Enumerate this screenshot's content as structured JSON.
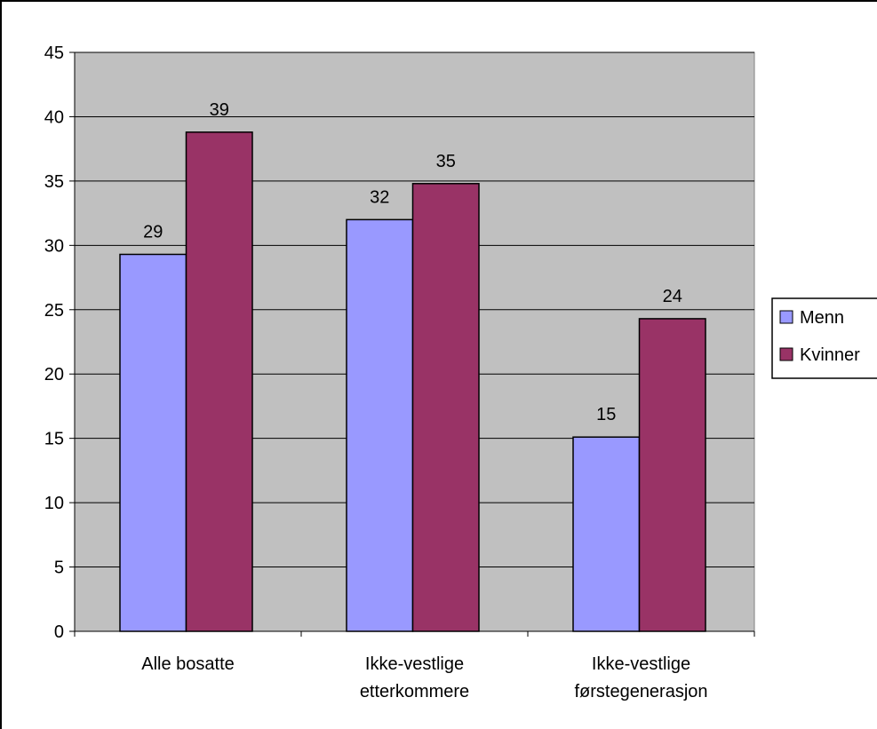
{
  "chart_data": {
    "type": "bar",
    "categories": [
      [
        "Alle bosatte"
      ],
      [
        "Ikke-vestlige",
        "etterkommere"
      ],
      [
        "Ikke-vestlige",
        "førstegenerasjon"
      ]
    ],
    "series": [
      {
        "name": "Menn",
        "values": [
          29.3,
          32.0,
          15.1
        ],
        "labels": [
          "29",
          "32",
          "15"
        ],
        "color": "#9999ff"
      },
      {
        "name": "Kvinner",
        "values": [
          38.8,
          34.8,
          24.3
        ],
        "labels": [
          "39",
          "35",
          "24"
        ],
        "color": "#993366"
      }
    ],
    "ylim": [
      0,
      45
    ],
    "yticks": [
      "0",
      "5",
      "10",
      "15",
      "20",
      "25",
      "30",
      "35",
      "40",
      "45"
    ],
    "plot_background": "#c0c0c0",
    "grid": true,
    "legend_position": "right"
  }
}
